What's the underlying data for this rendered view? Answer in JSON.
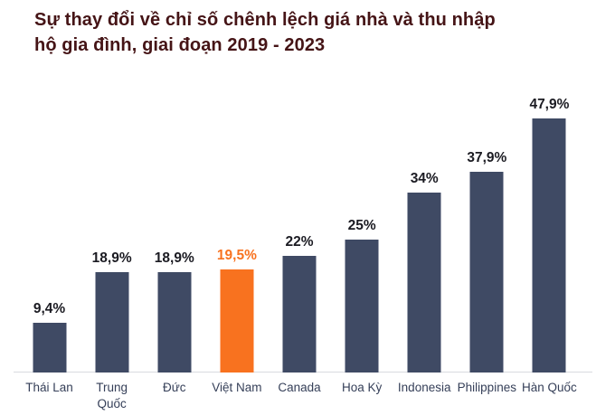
{
  "chart_data": {
    "type": "bar",
    "title": "Sự thay đổi về chỉ số chênh lệch giá nhà và thu nhập hộ gia đình, giai đoạn 2019 - 2023",
    "title_lines": [
      "Sự thay đổi về chỉ số chênh lệch giá nhà và thu nhập",
      "hộ gia đình, giai đoạn 2019 - 2023"
    ],
    "categories": [
      "Thái Lan",
      "Trung Quốc",
      "Đức",
      "Việt Nam",
      "Canada",
      "Hoa Kỳ",
      "Indonesia",
      "Philippines",
      "Hàn Quốc"
    ],
    "category_display": [
      "Thái Lan",
      "Trung\nQuốc",
      "Đức",
      "Việt Nam",
      "Canada",
      "Hoa Kỳ",
      "Indonesia",
      "Philippines",
      "Hàn Quốc"
    ],
    "values": [
      9.4,
      18.9,
      18.9,
      19.5,
      22,
      25,
      34,
      37.9,
      47.9
    ],
    "value_labels": [
      "9,4%",
      "18,9%",
      "18,9%",
      "19,5%",
      "22%",
      "25%",
      "34%",
      "37,9%",
      "47,9%"
    ],
    "highlight_index": 3,
    "xlabel": "",
    "ylabel": "",
    "ylim": [
      0,
      50
    ],
    "grid": false,
    "legend": false,
    "colors": {
      "bar": "#3f4a64",
      "highlight": "#f8721f",
      "title": "#451416",
      "value_label": "#1b1b22",
      "category_label": "#353f58",
      "axis_line": "#d9dbe0",
      "background": "#ffffff"
    }
  }
}
